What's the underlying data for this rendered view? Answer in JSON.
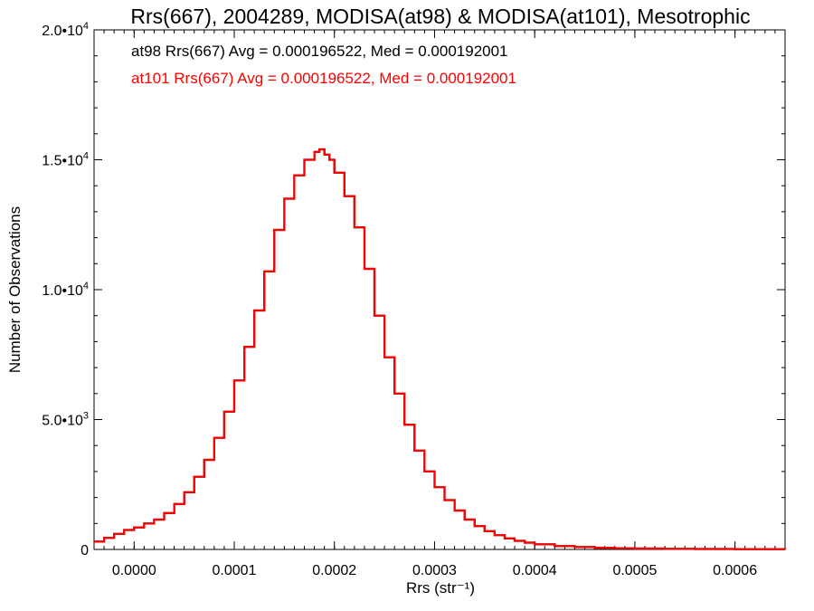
{
  "chart_data": {
    "type": "line",
    "title": "Rrs(667), 2004289, MODISA(at98) & MODISA(at101), Mesotrophic",
    "xlabel": "Rrs (str⁻¹)",
    "ylabel": "Number of Observations",
    "xlim": [
      -4e-05,
      0.00065
    ],
    "ylim": [
      0,
      20000
    ],
    "x_ticks": [
      {
        "value": 0.0,
        "label": "0.0000"
      },
      {
        "value": 0.0001,
        "label": "0.0001"
      },
      {
        "value": 0.0002,
        "label": "0.0002"
      },
      {
        "value": 0.0003,
        "label": "0.0003"
      },
      {
        "value": 0.0004,
        "label": "0.0004"
      },
      {
        "value": 0.0005,
        "label": "0.0005"
      },
      {
        "value": 0.0006,
        "label": "0.0006"
      }
    ],
    "y_ticks": [
      {
        "value": 0,
        "label": "0",
        "exp": ""
      },
      {
        "value": 5000,
        "label": "5.0•1",
        "base": "5.0•10",
        "exp": "3"
      },
      {
        "value": 10000,
        "label": "1.0•10",
        "base": "1.0•10",
        "exp": "4"
      },
      {
        "value": 15000,
        "label": "1.5•10",
        "base": "1.5•10",
        "exp": "4"
      },
      {
        "value": 20000,
        "label": "2.0•10",
        "base": "2.0•10",
        "exp": "4"
      }
    ],
    "annotations": [
      {
        "text": "at98 Rrs(667) Avg = 0.000196522, Med = 0.000192001",
        "color": "#000000"
      },
      {
        "text": "at101 Rrs(667) Avg = 0.000196522, Med = 0.000192001",
        "color": "#ff0000"
      }
    ],
    "series": [
      {
        "name": "at98",
        "color": "#000000",
        "x": [
          -4e-05,
          -3e-05,
          -2e-05,
          -1e-05,
          0.0,
          1e-05,
          2e-05,
          3e-05,
          4e-05,
          5e-05,
          6e-05,
          7e-05,
          8e-05,
          9e-05,
          0.0001,
          0.00011,
          0.00012,
          0.00013,
          0.00014,
          0.00015,
          0.00016,
          0.00017,
          0.00018,
          0.000185,
          0.00019,
          0.000195,
          0.0002,
          0.00021,
          0.00022,
          0.00023,
          0.00024,
          0.00025,
          0.00026,
          0.00027,
          0.00028,
          0.00029,
          0.0003,
          0.00031,
          0.00032,
          0.00033,
          0.00034,
          0.00035,
          0.00036,
          0.00037,
          0.00038,
          0.00039,
          0.0004,
          0.00042,
          0.00044,
          0.00046,
          0.00048,
          0.0005,
          0.00053,
          0.00056,
          0.0006,
          0.00065
        ],
        "values": [
          300,
          450,
          600,
          750,
          850,
          1000,
          1150,
          1400,
          1750,
          2200,
          2800,
          3450,
          4300,
          5300,
          6500,
          7800,
          9200,
          10700,
          12300,
          13500,
          14400,
          15000,
          15300,
          15400,
          15200,
          15000,
          14500,
          13600,
          12400,
          10800,
          9000,
          7400,
          6000,
          4800,
          3800,
          3000,
          2400,
          1900,
          1500,
          1150,
          900,
          700,
          550,
          420,
          330,
          260,
          200,
          130,
          90,
          65,
          45,
          35,
          25,
          18,
          10,
          5
        ]
      },
      {
        "name": "at101",
        "color": "#ff0000",
        "x": [
          -4e-05,
          -3e-05,
          -2e-05,
          -1e-05,
          0.0,
          1e-05,
          2e-05,
          3e-05,
          4e-05,
          5e-05,
          6e-05,
          7e-05,
          8e-05,
          9e-05,
          0.0001,
          0.00011,
          0.00012,
          0.00013,
          0.00014,
          0.00015,
          0.00016,
          0.00017,
          0.00018,
          0.000185,
          0.00019,
          0.000195,
          0.0002,
          0.00021,
          0.00022,
          0.00023,
          0.00024,
          0.00025,
          0.00026,
          0.00027,
          0.00028,
          0.00029,
          0.0003,
          0.00031,
          0.00032,
          0.00033,
          0.00034,
          0.00035,
          0.00036,
          0.00037,
          0.00038,
          0.00039,
          0.0004,
          0.00042,
          0.00044,
          0.00046,
          0.00048,
          0.0005,
          0.00053,
          0.00056,
          0.0006,
          0.00065
        ],
        "values": [
          300,
          450,
          600,
          750,
          850,
          1000,
          1150,
          1400,
          1750,
          2200,
          2800,
          3450,
          4300,
          5300,
          6500,
          7800,
          9200,
          10700,
          12300,
          13500,
          14400,
          15000,
          15300,
          15400,
          15200,
          15000,
          14500,
          13600,
          12400,
          10800,
          9000,
          7400,
          6000,
          4800,
          3800,
          3000,
          2400,
          1900,
          1500,
          1150,
          900,
          700,
          550,
          420,
          330,
          260,
          200,
          130,
          90,
          65,
          45,
          35,
          25,
          18,
          10,
          5
        ]
      }
    ]
  }
}
